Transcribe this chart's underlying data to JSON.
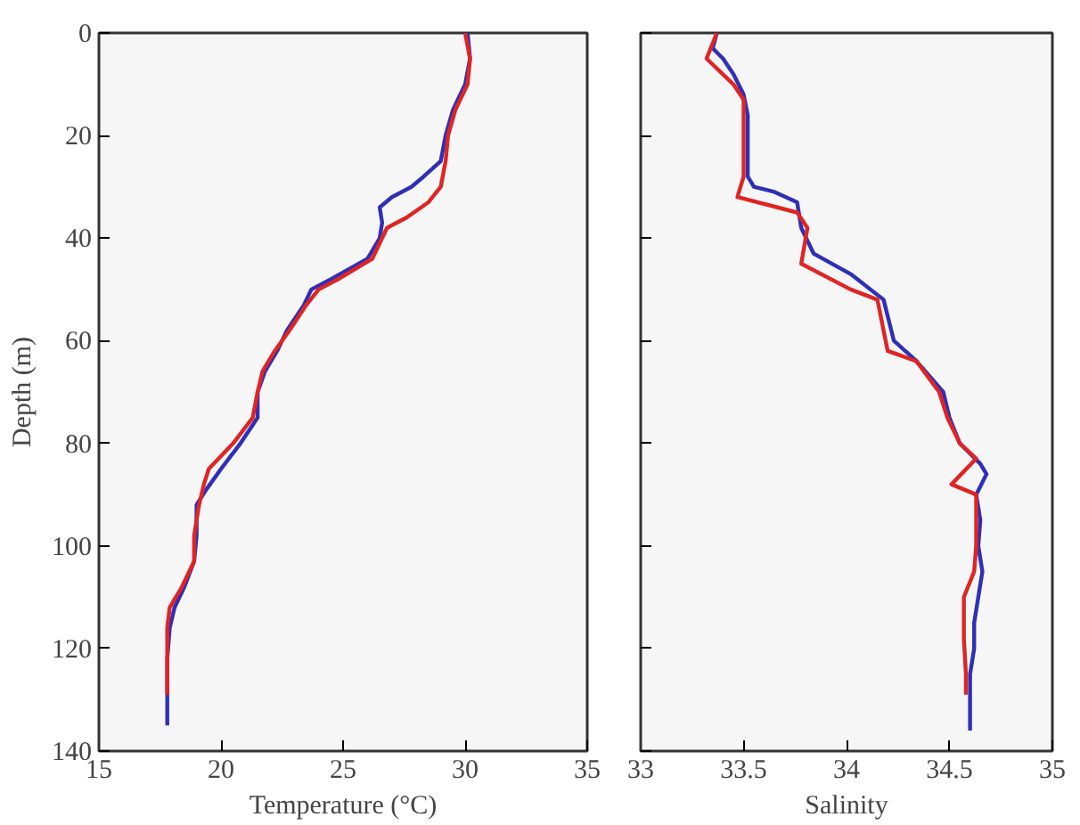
{
  "chart_data": [
    {
      "type": "line",
      "xlabel": "Temperature (°C)",
      "ylabel": "Depth (m)",
      "xlim": [
        15,
        35
      ],
      "xticks": [
        15,
        20,
        25,
        30,
        35
      ],
      "ylim": [
        140,
        0
      ],
      "yticks": [
        0,
        20,
        40,
        60,
        80,
        100,
        120,
        140
      ],
      "grid": false,
      "series": [
        {
          "color": "#2f2fb8",
          "x": [
            30.1,
            30.2,
            30.0,
            29.5,
            29.2,
            29.0,
            28.3,
            27.8,
            27.0,
            26.5,
            26.6,
            26.5,
            26.0,
            24.5,
            23.7,
            23.4,
            22.7,
            22.3,
            21.8,
            21.5,
            21.5,
            20.8,
            20.0,
            19.4,
            19.0,
            19.0,
            18.9,
            18.5,
            18.1,
            17.9,
            17.8,
            17.8,
            17.8
          ],
          "values": [
            0,
            5,
            10,
            15,
            20,
            25,
            28,
            30,
            32,
            34,
            37,
            40,
            44,
            48,
            50,
            53,
            58,
            62,
            66,
            70,
            75,
            80,
            85,
            89,
            92,
            98,
            103,
            108,
            112,
            116,
            122,
            130,
            135
          ]
        },
        {
          "color": "#e02424",
          "x": [
            30.0,
            30.2,
            30.1,
            29.6,
            29.3,
            29.2,
            29.0,
            28.5,
            27.6,
            26.8,
            26.6,
            26.2,
            24.8,
            24.0,
            23.5,
            22.8,
            22.2,
            21.7,
            21.5,
            21.3,
            20.5,
            19.5,
            19.3,
            19.1,
            18.9,
            18.9,
            18.4,
            17.9,
            17.8,
            17.8,
            17.8
          ],
          "values": [
            0,
            5,
            10,
            15,
            20,
            25,
            30,
            33,
            36,
            38,
            40,
            44,
            48,
            50,
            53,
            58,
            62,
            66,
            70,
            75,
            80,
            85,
            88,
            92,
            98,
            103,
            108,
            112,
            116,
            122,
            129
          ]
        }
      ]
    },
    {
      "type": "line",
      "xlabel": "Salinity",
      "xlim": [
        33,
        35
      ],
      "xticks": [
        33,
        33.5,
        34,
        34.5,
        35
      ],
      "ylim": [
        140,
        0
      ],
      "yticks": [
        0,
        20,
        40,
        60,
        80,
        100,
        120,
        140
      ],
      "grid": false,
      "tick_labels": "x",
      "series": [
        {
          "color": "#2f2fb8",
          "x": [
            33.37,
            33.35,
            33.4,
            33.45,
            33.5,
            33.52,
            33.52,
            33.52,
            33.52,
            33.55,
            33.65,
            33.76,
            33.78,
            33.84,
            34.02,
            34.18,
            34.23,
            34.34,
            34.47,
            34.5,
            34.55,
            34.65,
            34.68,
            34.63,
            34.65,
            34.64,
            34.66,
            34.64,
            34.62,
            34.62,
            34.6,
            34.6,
            34.6
          ],
          "values": [
            0,
            3,
            5,
            8,
            12,
            16,
            20,
            25,
            28,
            30,
            31,
            33,
            38,
            43,
            47,
            52,
            60,
            64,
            70,
            75,
            80,
            84,
            86,
            90,
            95,
            100,
            105,
            110,
            115,
            120,
            125,
            130,
            136
          ]
        },
        {
          "color": "#e02424",
          "x": [
            33.37,
            33.32,
            33.45,
            33.5,
            33.5,
            33.5,
            33.47,
            33.76,
            33.81,
            33.78,
            34.02,
            34.15,
            34.2,
            34.34,
            34.45,
            34.49,
            34.55,
            34.63,
            34.51,
            34.63,
            34.63,
            34.62,
            34.57,
            34.57,
            34.58,
            34.58
          ],
          "values": [
            0,
            5,
            10,
            13,
            20,
            28,
            32,
            35,
            38,
            45,
            50,
            52,
            62,
            64,
            70,
            75,
            80,
            83,
            88,
            90,
            100,
            105,
            110,
            118,
            125,
            129
          ]
        }
      ]
    }
  ]
}
